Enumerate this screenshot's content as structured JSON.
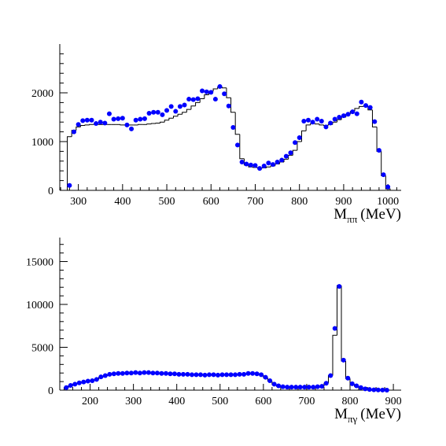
{
  "chart_data": [
    {
      "type": "histogram",
      "xlabel": "M",
      "xlabel_sub": "ππ",
      "xlabel_unit": "(MeV)",
      "xlim": [
        258,
        1030
      ],
      "ylim": [
        0,
        3000
      ],
      "xticks": [
        300,
        400,
        500,
        600,
        700,
        800,
        900,
        1000
      ],
      "yticks": [
        0,
        1000,
        2000
      ],
      "hist_color": "#000000",
      "bins": [
        275,
        285,
        295,
        305,
        315,
        325,
        335,
        345,
        355,
        365,
        375,
        385,
        395,
        405,
        415,
        425,
        435,
        445,
        455,
        465,
        475,
        485,
        495,
        505,
        515,
        525,
        535,
        545,
        555,
        565,
        575,
        585,
        595,
        605,
        615,
        625,
        635,
        645,
        655,
        665,
        675,
        685,
        695,
        705,
        715,
        725,
        735,
        745,
        755,
        765,
        775,
        785,
        795,
        805,
        815,
        825,
        835,
        845,
        855,
        865,
        875,
        885,
        895,
        905,
        915,
        925,
        935,
        945,
        955,
        965,
        975,
        985,
        995,
        1005
      ],
      "counts": [
        1100,
        1230,
        1300,
        1330,
        1340,
        1350,
        1350,
        1350,
        1350,
        1350,
        1350,
        1350,
        1340,
        1340,
        1340,
        1340,
        1350,
        1350,
        1360,
        1370,
        1380,
        1400,
        1440,
        1480,
        1520,
        1560,
        1600,
        1660,
        1730,
        1800,
        1880,
        1960,
        2030,
        2080,
        2120,
        2100,
        1900,
        1600,
        1150,
        650,
        520,
        480,
        470,
        460,
        460,
        480,
        500,
        540,
        580,
        640,
        720,
        820,
        1000,
        1220,
        1340,
        1370,
        1360,
        1340,
        1330,
        1350,
        1400,
        1450,
        1500,
        1560,
        1620,
        1680,
        1720,
        1730,
        1650,
        1300,
        800,
        300,
        30
      ],
      "points": {
        "color": "#0000ff",
        "x": [
          280,
          290,
          300,
          310,
          320,
          330,
          340,
          350,
          360,
          370,
          380,
          390,
          400,
          410,
          420,
          430,
          440,
          450,
          460,
          470,
          480,
          490,
          500,
          510,
          520,
          530,
          540,
          550,
          560,
          570,
          580,
          590,
          600,
          610,
          620,
          630,
          640,
          650,
          660,
          670,
          680,
          690,
          700,
          710,
          720,
          730,
          740,
          750,
          760,
          770,
          780,
          790,
          800,
          810,
          820,
          830,
          840,
          850,
          860,
          870,
          880,
          890,
          900,
          910,
          920,
          930,
          940,
          950,
          960,
          970,
          980,
          990,
          1000
        ],
        "values": [
          100,
          1200,
          1350,
          1430,
          1440,
          1440,
          1370,
          1400,
          1380,
          1570,
          1460,
          1470,
          1480,
          1340,
          1260,
          1440,
          1460,
          1470,
          1580,
          1600,
          1600,
          1550,
          1640,
          1720,
          1620,
          1720,
          1750,
          1870,
          1860,
          1880,
          2040,
          2020,
          2010,
          1870,
          2130,
          1980,
          1730,
          1290,
          930,
          580,
          540,
          520,
          510,
          450,
          500,
          560,
          530,
          580,
          620,
          700,
          770,
          980,
          1080,
          1420,
          1440,
          1400,
          1460,
          1420,
          1300,
          1380,
          1460,
          1500,
          1530,
          1560,
          1610,
          1570,
          1810,
          1740,
          1700,
          1410,
          820,
          320,
          70
        ]
      }
    },
    {
      "type": "histogram",
      "xlabel": "M",
      "xlabel_sub": "πγ",
      "xlabel_unit": "(MeV)",
      "xlim": [
        130,
        918
      ],
      "ylim": [
        0,
        17800
      ],
      "xticks": [
        200,
        300,
        400,
        500,
        600,
        700,
        800,
        900
      ],
      "yticks": [
        0,
        5000,
        10000,
        15000
      ],
      "hist_color": "#000000",
      "bins": [
        140,
        150,
        160,
        170,
        180,
        190,
        200,
        210,
        220,
        230,
        240,
        250,
        260,
        270,
        280,
        290,
        300,
        310,
        320,
        330,
        340,
        350,
        360,
        370,
        380,
        390,
        400,
        410,
        420,
        430,
        440,
        450,
        460,
        470,
        480,
        490,
        500,
        510,
        520,
        530,
        540,
        550,
        560,
        570,
        580,
        590,
        600,
        610,
        620,
        630,
        640,
        650,
        660,
        670,
        680,
        690,
        700,
        710,
        720,
        730,
        740,
        750,
        760,
        770,
        780,
        790,
        800,
        810,
        820,
        830,
        840,
        850,
        860,
        870,
        880,
        890
      ],
      "counts": [
        250,
        500,
        700,
        830,
        930,
        1030,
        1100,
        1250,
        1500,
        1650,
        1800,
        1850,
        1900,
        1950,
        1950,
        1980,
        2000,
        2000,
        2000,
        1980,
        1950,
        1950,
        1920,
        1900,
        1880,
        1870,
        1850,
        1830,
        1820,
        1800,
        1790,
        1780,
        1770,
        1770,
        1770,
        1770,
        1780,
        1780,
        1790,
        1800,
        1820,
        1850,
        1880,
        1900,
        1880,
        1780,
        1450,
        1050,
        650,
        450,
        380,
        340,
        330,
        330,
        330,
        330,
        340,
        350,
        380,
        450,
        800,
        1700,
        6400,
        12200,
        3400,
        1350,
        700,
        450,
        280,
        150,
        80,
        40,
        20,
        10,
        5
      ],
      "points": {
        "color": "#0000ff",
        "x": [
          145,
          155,
          165,
          175,
          185,
          195,
          205,
          215,
          225,
          235,
          245,
          255,
          265,
          275,
          285,
          295,
          305,
          315,
          325,
          335,
          345,
          355,
          365,
          375,
          385,
          395,
          405,
          415,
          425,
          435,
          445,
          455,
          465,
          475,
          485,
          495,
          505,
          515,
          525,
          535,
          545,
          555,
          565,
          575,
          585,
          595,
          605,
          615,
          625,
          635,
          645,
          655,
          665,
          675,
          685,
          695,
          705,
          715,
          725,
          735,
          745,
          755,
          765,
          775,
          785,
          795,
          805,
          815,
          825,
          835,
          845,
          855,
          865,
          875,
          885
        ],
        "values": [
          300,
          550,
          700,
          850,
          950,
          1050,
          1100,
          1250,
          1550,
          1700,
          1850,
          1900,
          1950,
          1950,
          2000,
          2000,
          2050,
          2000,
          2050,
          2050,
          2000,
          2000,
          1950,
          1950,
          1900,
          1900,
          1850,
          1850,
          1850,
          1800,
          1800,
          1800,
          1750,
          1800,
          1800,
          1750,
          1800,
          1800,
          1800,
          1800,
          1850,
          1850,
          1950,
          1950,
          1900,
          1800,
          1500,
          1100,
          700,
          500,
          400,
          350,
          350,
          350,
          350,
          350,
          350,
          350,
          400,
          450,
          800,
          1700,
          7200,
          12100,
          3500,
          1400,
          750,
          500,
          300,
          150,
          80,
          40,
          20,
          10,
          5
        ]
      }
    }
  ]
}
